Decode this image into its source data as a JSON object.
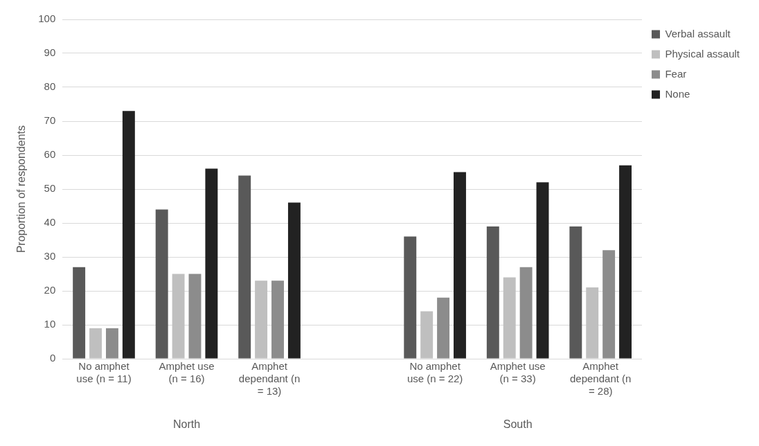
{
  "chart_data": {
    "type": "bar",
    "ylabel": "Proportion of respondents",
    "categories": [
      "No amphet use (n = 11)",
      "Amphet use (n = 16)",
      "Amphet dependant (n = 13)",
      null,
      "No amphet use (n = 22)",
      "Amphet use (n = 33)",
      "Amphet dependant (n = 28)"
    ],
    "series": [
      {
        "name": "Verbal assault",
        "color": "#595959",
        "values": [
          27,
          44,
          54,
          null,
          36,
          39,
          39
        ]
      },
      {
        "name": "Physical assault",
        "color": "#bfbfbf",
        "values": [
          9,
          25,
          23,
          null,
          14,
          24,
          21
        ]
      },
      {
        "name": "Fear",
        "color": "#8c8c8c",
        "values": [
          9,
          25,
          23,
          null,
          18,
          27,
          32
        ]
      },
      {
        "name": "None",
        "color": "#222222",
        "values": [
          73,
          56,
          46,
          null,
          55,
          52,
          57
        ]
      }
    ],
    "ylim": [
      0,
      100
    ],
    "yticks": [
      0,
      10,
      20,
      30,
      40,
      50,
      60,
      70,
      80,
      90,
      100
    ],
    "grid": "y",
    "legend": "top right",
    "annotations": [
      "North",
      "South"
    ]
  }
}
